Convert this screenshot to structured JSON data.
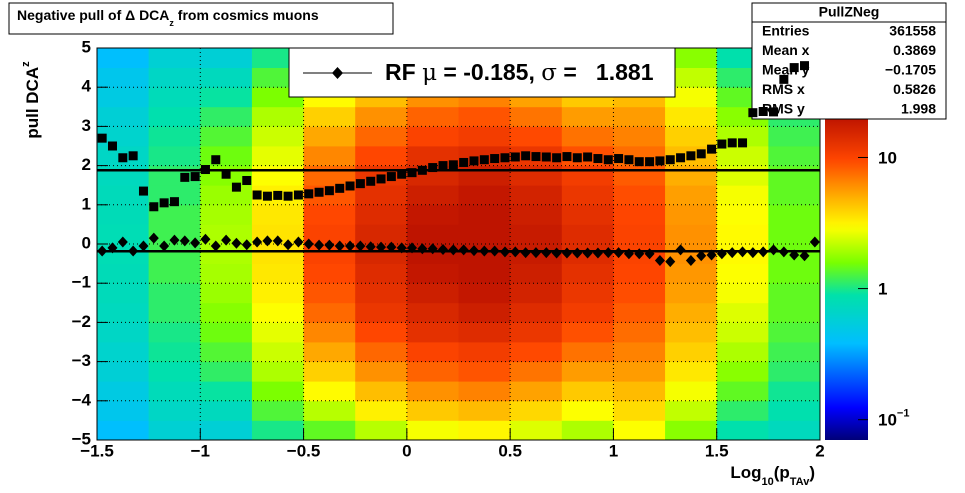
{
  "chart_data": {
    "type": "hist2d",
    "title": {
      "text": "Negative pull of Δ DCA",
      "sub": "z",
      "tail": " from cosmics muons"
    },
    "y_label": {
      "text": "pull DCA",
      "sub": "z"
    },
    "x_label": {
      "text": "Log",
      "sub": "10",
      "mid": "(p",
      "sub2": "TAv",
      "tail": ")"
    },
    "xlim": [
      -1.5,
      2
    ],
    "ylim": [
      -5,
      5
    ],
    "xticks": [
      {
        "value": -1.5,
        "label": "−1.5"
      },
      {
        "value": -1,
        "label": "−1"
      },
      {
        "value": -0.5,
        "label": "−0.5"
      },
      0,
      0.5,
      1,
      1.5,
      2
    ],
    "yticks": [
      {
        "value": -5,
        "label": "−5"
      },
      {
        "value": -4,
        "label": "−4"
      },
      {
        "value": -3,
        "label": "−3"
      },
      {
        "value": -2,
        "label": "−2"
      },
      {
        "value": -1,
        "label": "−1"
      },
      0,
      1,
      2,
      3,
      4,
      5
    ],
    "grid": true,
    "zlim": [
      0.07,
      20
    ],
    "zlog": true,
    "zticks": [
      {
        "value": 0.1,
        "label": "10",
        "sup": "−1"
      },
      1,
      10
    ],
    "xbins": [
      -1.5,
      -1.25,
      -1,
      -0.75,
      -0.5,
      -0.25,
      0,
      0.25,
      0.5,
      0.75,
      1,
      1.25,
      1.5,
      1.75,
      2
    ],
    "ybins": [
      -5,
      -4.5,
      -4,
      -3.5,
      -3,
      -2.5,
      -2,
      -1.5,
      -1,
      -0.5,
      0,
      0.5,
      1,
      1.5,
      2,
      2.5,
      3,
      3.5,
      4,
      4.5,
      5
    ],
    "z": [
      [
        0.39,
        0.46,
        0.51,
        0.58,
        0.63,
        0.68,
        0.73,
        0.76,
        0.78,
        0.8,
        0.8,
        0.78,
        0.76,
        0.73,
        0.68,
        0.63,
        0.58,
        0.51,
        0.46,
        0.39
      ],
      [
        0.59,
        0.68,
        0.77,
        0.86,
        0.95,
        1.0,
        1.1,
        1.1,
        1.2,
        1.2,
        1.2,
        1.2,
        1.1,
        1.1,
        1.0,
        0.95,
        0.86,
        0.77,
        0.68,
        0.59
      ],
      [
        0.58,
        0.74,
        0.92,
        1.12,
        1.32,
        1.5,
        1.68,
        1.84,
        1.94,
        2,
        2,
        1.94,
        1.84,
        1.68,
        1.5,
        1.32,
        1.12,
        0.92,
        0.74,
        0.58
      ],
      [
        1.0,
        1.3,
        1.6,
        2.0,
        2.3,
        2.6,
        2.9,
        3.2,
        3.4,
        3.5,
        3.5,
        3.4,
        3.2,
        2.9,
        2.6,
        2.3,
        2.0,
        1.6,
        1.3,
        1.0
      ],
      [
        1.4,
        2.1,
        3.0,
        4.0,
        5.2,
        6.4,
        7.7,
        8.7,
        9.5,
        10,
        10,
        9.5,
        8.7,
        7.7,
        6.4,
        5.2,
        4.0,
        3.0,
        2.1,
        1.4
      ],
      [
        2.1,
        3.2,
        4.5,
        6,
        7.8,
        9.6,
        12,
        13,
        14,
        15,
        15,
        14,
        13,
        12,
        9.6,
        7.8,
        6,
        4.5,
        3.2,
        2.1
      ],
      [
        2.8,
        4.2,
        6,
        8,
        10,
        13,
        15,
        17,
        19,
        20,
        20,
        19,
        17,
        15,
        13,
        10,
        8,
        6,
        4.2,
        2.8
      ],
      [
        3.1,
        4.6,
        6.6,
        8.8,
        11,
        14,
        17,
        19,
        21,
        22,
        22,
        21,
        19,
        17,
        14,
        11,
        8.8,
        6.6,
        4.6,
        3.1
      ],
      [
        2.5,
        3.8,
        5.4,
        7.2,
        9.4,
        12,
        14,
        16,
        17,
        18,
        18,
        17,
        16,
        14,
        12,
        9.4,
        7.2,
        5.4,
        3.8,
        2.5
      ],
      [
        2.0,
        2.9,
        4.2,
        5.6,
        7.3,
        9,
        11,
        12,
        13,
        14,
        14,
        13,
        12,
        11,
        9,
        7.3,
        5.6,
        4.2,
        2.9,
        2.0
      ],
      [
        2.9,
        3.7,
        4.6,
        5.6,
        6.6,
        7.5,
        8.4,
        9.2,
        9.7,
        10,
        10,
        9.7,
        9.2,
        8.4,
        7.5,
        6.6,
        5.6,
        4.6,
        3.7,
        2.9
      ],
      [
        1.7,
        2.2,
        2.8,
        3.4,
        4,
        4.5,
        5,
        5.5,
        5.8,
        6,
        6,
        5.8,
        5.5,
        5,
        4.5,
        4,
        3.4,
        2.8,
        2.2,
        1.7
      ],
      [
        0.87,
        1.1,
        1.4,
        1.7,
        2,
        2.3,
        2.5,
        2.8,
        2.9,
        3,
        3,
        2.9,
        2.8,
        2.5,
        2.3,
        2,
        1.7,
        1.4,
        1.1,
        0.87
      ],
      [
        0.74,
        0.86,
        0.96,
        1.1,
        1.2,
        1.3,
        1.4,
        1.4,
        1.5,
        1.5,
        1.5,
        1.5,
        1.4,
        1.4,
        1.3,
        1.2,
        1.1,
        0.96,
        0.86,
        0.74
      ]
    ],
    "x": [
      -1.475,
      -1.425,
      -1.375,
      -1.325,
      -1.275,
      -1.225,
      -1.175,
      -1.125,
      -1.075,
      -1.025,
      -0.975,
      -0.925,
      -0.875,
      -0.825,
      -0.775,
      -0.725,
      -0.675,
      -0.625,
      -0.575,
      -0.525,
      -0.475,
      -0.425,
      -0.375,
      -0.325,
      -0.275,
      -0.225,
      -0.175,
      -0.125,
      -0.075,
      -0.025,
      0.025,
      0.075,
      0.125,
      0.175,
      0.225,
      0.275,
      0.325,
      0.375,
      0.425,
      0.475,
      0.525,
      0.575,
      0.625,
      0.675,
      0.725,
      0.775,
      0.825,
      0.875,
      0.925,
      0.975,
      1.025,
      1.075,
      1.125,
      1.175,
      1.225,
      1.275,
      1.325,
      1.375,
      1.425,
      1.475,
      1.525,
      1.575,
      1.625,
      1.675,
      1.725,
      1.775,
      1.825,
      1.875,
      1.925,
      1.975
    ],
    "sigma": [
      2.7,
      2.5,
      2.2,
      2.25,
      1.35,
      0.95,
      1.05,
      1.08,
      1.7,
      1.72,
      1.9,
      2.15,
      1.78,
      1.45,
      1.62,
      1.25,
      1.22,
      1.24,
      1.22,
      1.25,
      1.28,
      1.32,
      1.36,
      1.42,
      1.48,
      1.54,
      1.6,
      1.66,
      1.72,
      1.78,
      1.82,
      1.88,
      1.95,
      2.0,
      2.02,
      2.08,
      2.12,
      2.15,
      2.18,
      2.2,
      2.22,
      2.25,
      2.23,
      2.22,
      2.2,
      2.23,
      2.2,
      2.22,
      2.18,
      2.15,
      2.18,
      2.15,
      2.1,
      2.1,
      2.12,
      2.15,
      2.2,
      2.25,
      2.3,
      2.42,
      2.55,
      2.58,
      2.58,
      3.35,
      3.38,
      3.37,
      4.2,
      4.5,
      4.55,
      null
    ],
    "mean": [
      -0.18,
      -0.1,
      0.05,
      -0.18,
      -0.05,
      0.15,
      -0.05,
      0.1,
      0.08,
      0.03,
      0.12,
      -0.05,
      0.1,
      0.02,
      -0.02,
      0.05,
      0.08,
      0.08,
      -0.02,
      0.05,
      0.0,
      -0.03,
      -0.03,
      -0.05,
      -0.05,
      -0.05,
      -0.07,
      -0.08,
      -0.08,
      -0.1,
      -0.1,
      -0.12,
      -0.12,
      -0.14,
      -0.15,
      -0.15,
      -0.17,
      -0.18,
      -0.18,
      -0.2,
      -0.2,
      -0.22,
      -0.22,
      -0.22,
      -0.23,
      -0.23,
      -0.23,
      -0.23,
      -0.23,
      -0.22,
      -0.22,
      -0.25,
      -0.25,
      -0.25,
      -0.42,
      -0.45,
      -0.15,
      -0.42,
      -0.3,
      -0.28,
      -0.25,
      -0.22,
      -0.2,
      -0.22,
      -0.2,
      -0.15,
      -0.2,
      -0.28,
      -0.3,
      0.05
    ],
    "fit_mean": -0.185,
    "fit_sigma": 1.881,
    "legend_label": {
      "text": "RF ",
      "mu": "μ",
      "mid": " = -0.185, ",
      "sigma": "σ",
      "tail": " =   1.881"
    },
    "stats": {
      "title": "PullZNeg",
      "rows": [
        [
          "Entries",
          "361558"
        ],
        [
          "Mean x",
          "0.3869"
        ],
        [
          "Mean y",
          "−0.1705"
        ],
        [
          "RMS x",
          "0.5826"
        ],
        [
          "RMS y",
          "1.998"
        ]
      ]
    }
  }
}
